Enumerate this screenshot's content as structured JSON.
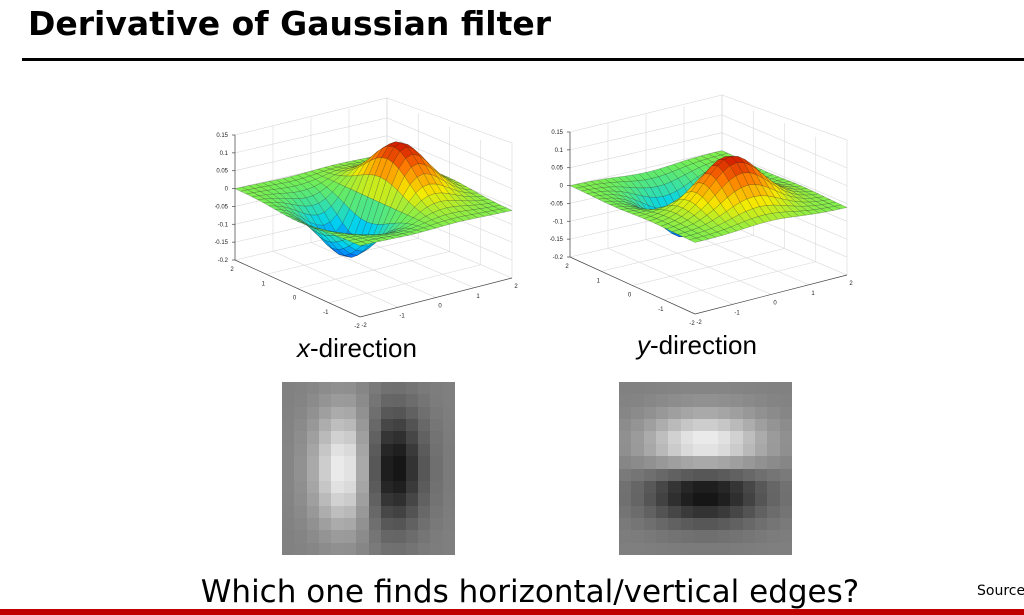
{
  "slide": {
    "title": "Derivative of Gaussian filter",
    "question": "Which one finds horizontal/vertical edges?",
    "source": "Source"
  },
  "plots": {
    "z_ticks": [
      "0.15",
      "0.1",
      "0.05",
      "0",
      "-0.05",
      "-0.1",
      "-0.15",
      "-0.2"
    ],
    "a_ticks": [
      "2",
      "1",
      "0",
      "-1",
      "-2"
    ],
    "b_ticks": [
      "-2",
      "-1",
      "0",
      "1",
      "2"
    ],
    "x": {
      "var": "x",
      "suffix": "-direction"
    },
    "y": {
      "var": "y",
      "suffix": "-direction"
    }
  },
  "colors": {
    "surface_low": "#0000cc",
    "surface_mid": "#66ee55",
    "surface_high": "#cc0000",
    "accent_bar": "#c00000"
  }
}
